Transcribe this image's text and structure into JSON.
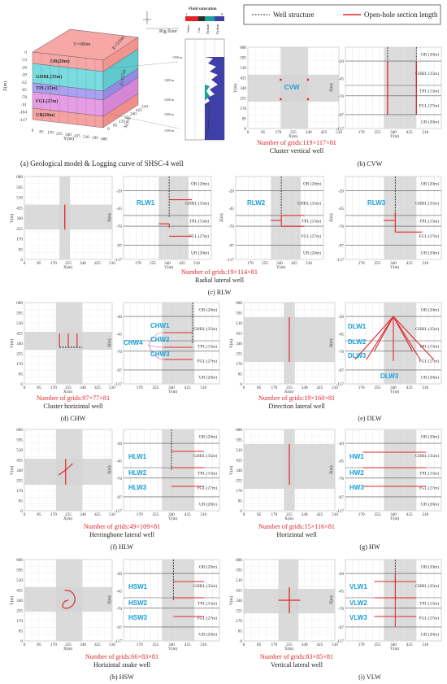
{
  "legend": {
    "well_structure": "Well structure",
    "open_hole": "Open-hole section length"
  },
  "geo_model": {
    "layers": [
      {
        "label": "OB(20m)",
        "color": "#f7a7a5"
      },
      {
        "label": "GHBL(35m)",
        "color": "#79dce0"
      },
      {
        "label": "TPL(15m)",
        "color": "#a9a2f2"
      },
      {
        "label": "FGL(27m)",
        "color": "#e79ce6"
      },
      {
        "label": "UB(20m)",
        "color": "#f6a2a0"
      }
    ],
    "top_x": "Y=680m",
    "top_y": "X=510m",
    "depth_label": "Z=117m",
    "z_ticks": [
      "0",
      "-13",
      "-26",
      "-39",
      "-52",
      "-65",
      "-78",
      "-91",
      "-104",
      "-117"
    ],
    "y_ticks": [
      "0",
      "85",
      "170",
      "255",
      "340",
      "425",
      "510",
      "595",
      "680"
    ],
    "x_ticks": [
      "0",
      "85",
      "170",
      "255",
      "340",
      "425",
      "510"
    ],
    "axis_z": "Z(m)",
    "axis_y": "Y(m)",
    "axis_x": "X(m)",
    "rig_floor": "Rig floor",
    "fluid_title": "Fluid saturation",
    "fluid_scale": [
      "1",
      "0"
    ],
    "fluid_cols": [
      "Water",
      "Gas",
      "Hydrate",
      "Hydrate"
    ],
    "depths": [
      "1350 m",
      "1400 m",
      "1450 m",
      "1500 m",
      "1550 m"
    ]
  },
  "plan_ticks_y": [
    "680",
    "595",
    "510",
    "425",
    "340",
    "255",
    "170",
    "85",
    "0"
  ],
  "plan_ticks_x": [
    "0",
    "85",
    "170",
    "255",
    "340",
    "425",
    "510"
  ],
  "sec_ticks_z": [
    "-20",
    "-45",
    "-70",
    "-97",
    "-117"
  ],
  "sec_ticks_y": [
    "170",
    "255",
    "340",
    "425",
    "510"
  ],
  "sec_layers": [
    "OB (20m)",
    "GHBL (35m)",
    "TPL (15m)",
    "FGL (27m)",
    "UB (20m)"
  ],
  "axis": {
    "x": "X(m)",
    "y": "Y(m)",
    "z": "Z(m)"
  },
  "panels": [
    {
      "caption": "(a) Geological model & Logging curve of SHSC-4 well"
    },
    {
      "caption": "(b) CVW",
      "grids": "Number of grids:119×117×81",
      "name": "Cluster vertical well",
      "labels": [
        "CVW"
      ]
    },
    {
      "caption": "(c) RLW",
      "grids": "Number of grids:19×114×81",
      "name": "Radial lateral well",
      "labels": [
        "RLW1",
        "RLW2",
        "RLW3"
      ]
    },
    {
      "caption": "(d) CHW",
      "grids": "Number of grids:97×77×81",
      "name": "Cluster horizintal well",
      "labels": [
        "CHW1",
        "CHW2",
        "CHW3",
        "CHW4"
      ]
    },
    {
      "caption": "(e) DLW",
      "grids": "Number of grids:19×160×81",
      "name": "Direction lateral well",
      "labels": [
        "DLW1",
        "DLW2",
        "DLW3",
        "DLW3"
      ]
    },
    {
      "caption": "(f) HLW",
      "grids": "Number of grids:49×109×81",
      "name": "Herringbone lateral well",
      "labels": [
        "HLW1",
        "HLW2",
        "HLW3"
      ]
    },
    {
      "caption": "(g) HW",
      "grids": "Number of grids:15×116×81",
      "name": "Horizintal well",
      "labels": [
        "HW1",
        "HW2",
        "HW3"
      ]
    },
    {
      "caption": "(h) HSW",
      "grids": "Number of grids:66×83×81",
      "name": "Horizintal snake well",
      "labels": [
        "HSW1",
        "HSW2",
        "HSW3"
      ]
    },
    {
      "caption": "(i) VLW",
      "grids": "Number of grids:83×85×81",
      "name": "Vertical lateral well",
      "labels": [
        "VLW1",
        "VLW2",
        "VLW3"
      ]
    }
  ]
}
